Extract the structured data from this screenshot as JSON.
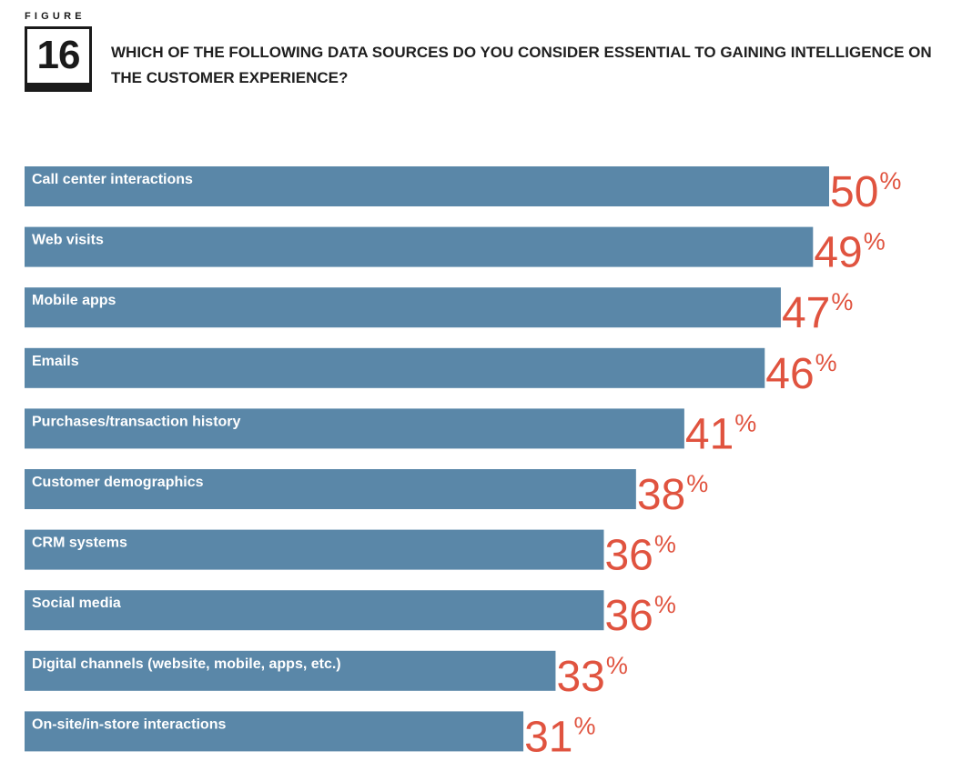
{
  "figure": {
    "label": "FIGURE",
    "number": "16"
  },
  "chart_data": {
    "type": "bar",
    "orientation": "horizontal",
    "title": "WHICH OF THE FOLLOWING DATA SOURCES DO YOU CONSIDER ESSENTIAL TO GAINING INTELLIGENCE ON THE CUSTOMER EXPERIENCE?",
    "categories": [
      "Call center interactions",
      "Web visits",
      "Mobile apps",
      "Emails",
      "Purchases/transaction history",
      "Customer demographics",
      "CRM systems",
      "Social media",
      "Digital channels (website, mobile, apps, etc.)",
      "On-site/in-store interactions"
    ],
    "values": [
      50,
      49,
      47,
      46,
      41,
      38,
      36,
      36,
      33,
      31
    ],
    "value_suffix": "%",
    "xlim": [
      0,
      50
    ],
    "grid": false,
    "legend": "none",
    "colors": {
      "bar": "#5a87a8",
      "value_label": "#e0533f",
      "bar_label": "#ffffff"
    }
  }
}
